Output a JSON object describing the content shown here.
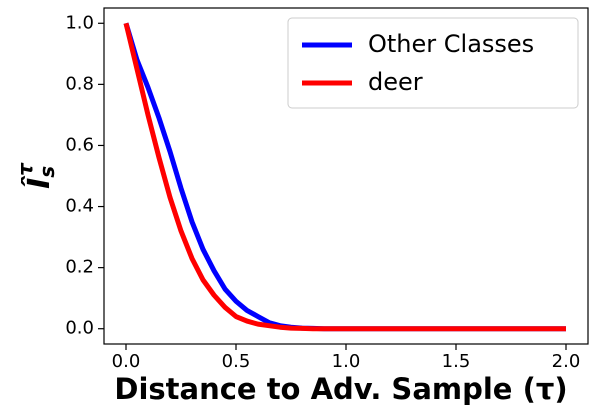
{
  "chart_data": {
    "type": "line",
    "xlabel": "Distance to Adv. Sample (τ)",
    "ylabel": {
      "base": "Î",
      "sub": "s",
      "sup": "τ"
    },
    "x": [
      0,
      0.05,
      0.1,
      0.15,
      0.2,
      0.25,
      0.3,
      0.35,
      0.4,
      0.45,
      0.5,
      0.55,
      0.6,
      0.65,
      0.7,
      0.75,
      0.8,
      0.85,
      0.9,
      1.0,
      1.5,
      2.0
    ],
    "series": [
      {
        "name": "Other Classes",
        "color": "#0000ff",
        "values": [
          1.0,
          0.88,
          0.79,
          0.69,
          0.58,
          0.46,
          0.35,
          0.26,
          0.19,
          0.13,
          0.09,
          0.06,
          0.04,
          0.02,
          0.01,
          0.005,
          0.002,
          0.001,
          0,
          0,
          0,
          0
        ]
      },
      {
        "name": "deer",
        "color": "#ff0000",
        "values": [
          1.0,
          0.85,
          0.7,
          0.56,
          0.43,
          0.32,
          0.23,
          0.16,
          0.11,
          0.07,
          0.04,
          0.025,
          0.015,
          0.01,
          0.005,
          0.002,
          0.001,
          0,
          0,
          0,
          0,
          0
        ]
      }
    ],
    "xlim": [
      -0.1,
      2.1
    ],
    "ylim": [
      -0.05,
      1.05
    ],
    "xticks": [
      {
        "value": 0,
        "label": "0.0"
      },
      0.5,
      {
        "value": 1,
        "label": "1.0"
      },
      1.5,
      {
        "value": 2,
        "label": "2.0"
      }
    ],
    "yticks": [
      {
        "value": 0,
        "label": "0.0"
      },
      0.2,
      0.4,
      0.6,
      0.8,
      {
        "value": 1,
        "label": "1.0"
      }
    ],
    "grid": false,
    "legend": "upper right"
  }
}
